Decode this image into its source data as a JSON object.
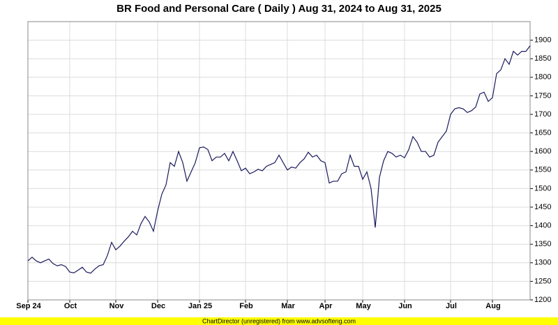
{
  "chart_data": {
    "type": "line",
    "title": "BR Food and Personal Care ( Daily ) Aug 31, 2024 to Aug 31, 2025",
    "footer": "ChartDirector (unregistered) from www.advsofteng.com",
    "categories": [
      "Sep 24",
      null,
      null,
      null,
      null,
      null,
      null,
      null,
      null,
      null,
      "Oct",
      null,
      null,
      null,
      null,
      null,
      null,
      null,
      null,
      null,
      null,
      "Nov",
      null,
      null,
      null,
      null,
      null,
      null,
      null,
      null,
      null,
      "Dec",
      null,
      null,
      null,
      null,
      null,
      null,
      null,
      null,
      null,
      "Jan 25",
      null,
      null,
      null,
      null,
      null,
      null,
      null,
      null,
      null,
      null,
      "Feb",
      null,
      null,
      null,
      null,
      null,
      null,
      null,
      null,
      null,
      "Mar",
      null,
      null,
      null,
      null,
      null,
      null,
      null,
      null,
      "Apr",
      null,
      null,
      null,
      null,
      null,
      null,
      null,
      null,
      "May",
      null,
      null,
      null,
      null,
      null,
      null,
      null,
      null,
      null,
      "Jun",
      null,
      null,
      null,
      null,
      null,
      null,
      null,
      null,
      null,
      null,
      "Jul",
      null,
      null,
      null,
      null,
      null,
      null,
      null,
      null,
      null,
      "Aug",
      null,
      null,
      null,
      null,
      null,
      null,
      null,
      null,
      null
    ],
    "series": [
      {
        "color": "#1a1a5e",
        "values": [
          1305,
          1315,
          1305,
          1300,
          1305,
          1310,
          1298,
          1292,
          1295,
          1290,
          1275,
          1273,
          1280,
          1288,
          1275,
          1272,
          1283,
          1292,
          1295,
          1320,
          1355,
          1335,
          1345,
          1358,
          1370,
          1385,
          1375,
          1405,
          1425,
          1410,
          1385,
          1440,
          1485,
          1510,
          1570,
          1560,
          1600,
          1570,
          1520,
          1545,
          1570,
          1610,
          1612,
          1605,
          1575,
          1585,
          1585,
          1595,
          1575,
          1600,
          1575,
          1548,
          1555,
          1540,
          1545,
          1552,
          1548,
          1560,
          1565,
          1570,
          1590,
          1570,
          1550,
          1558,
          1555,
          1570,
          1580,
          1598,
          1585,
          1590,
          1575,
          1570,
          1515,
          1520,
          1520,
          1540,
          1545,
          1590,
          1560,
          1560,
          1525,
          1545,
          1500,
          1395,
          1530,
          1575,
          1600,
          1595,
          1585,
          1590,
          1583,
          1605,
          1640,
          1625,
          1600,
          1600,
          1585,
          1590,
          1625,
          1640,
          1655,
          1700,
          1715,
          1718,
          1715,
          1705,
          1710,
          1720,
          1755,
          1760,
          1735,
          1745,
          1810,
          1820,
          1850,
          1835,
          1870,
          1860,
          1870,
          1870,
          1885
        ]
      }
    ],
    "ylim": [
      1200,
      1950
    ],
    "yticks": [
      1200,
      1250,
      1300,
      1350,
      1400,
      1450,
      1500,
      1550,
      1600,
      1650,
      1700,
      1750,
      1800,
      1850,
      1900
    ],
    "grid": true
  }
}
